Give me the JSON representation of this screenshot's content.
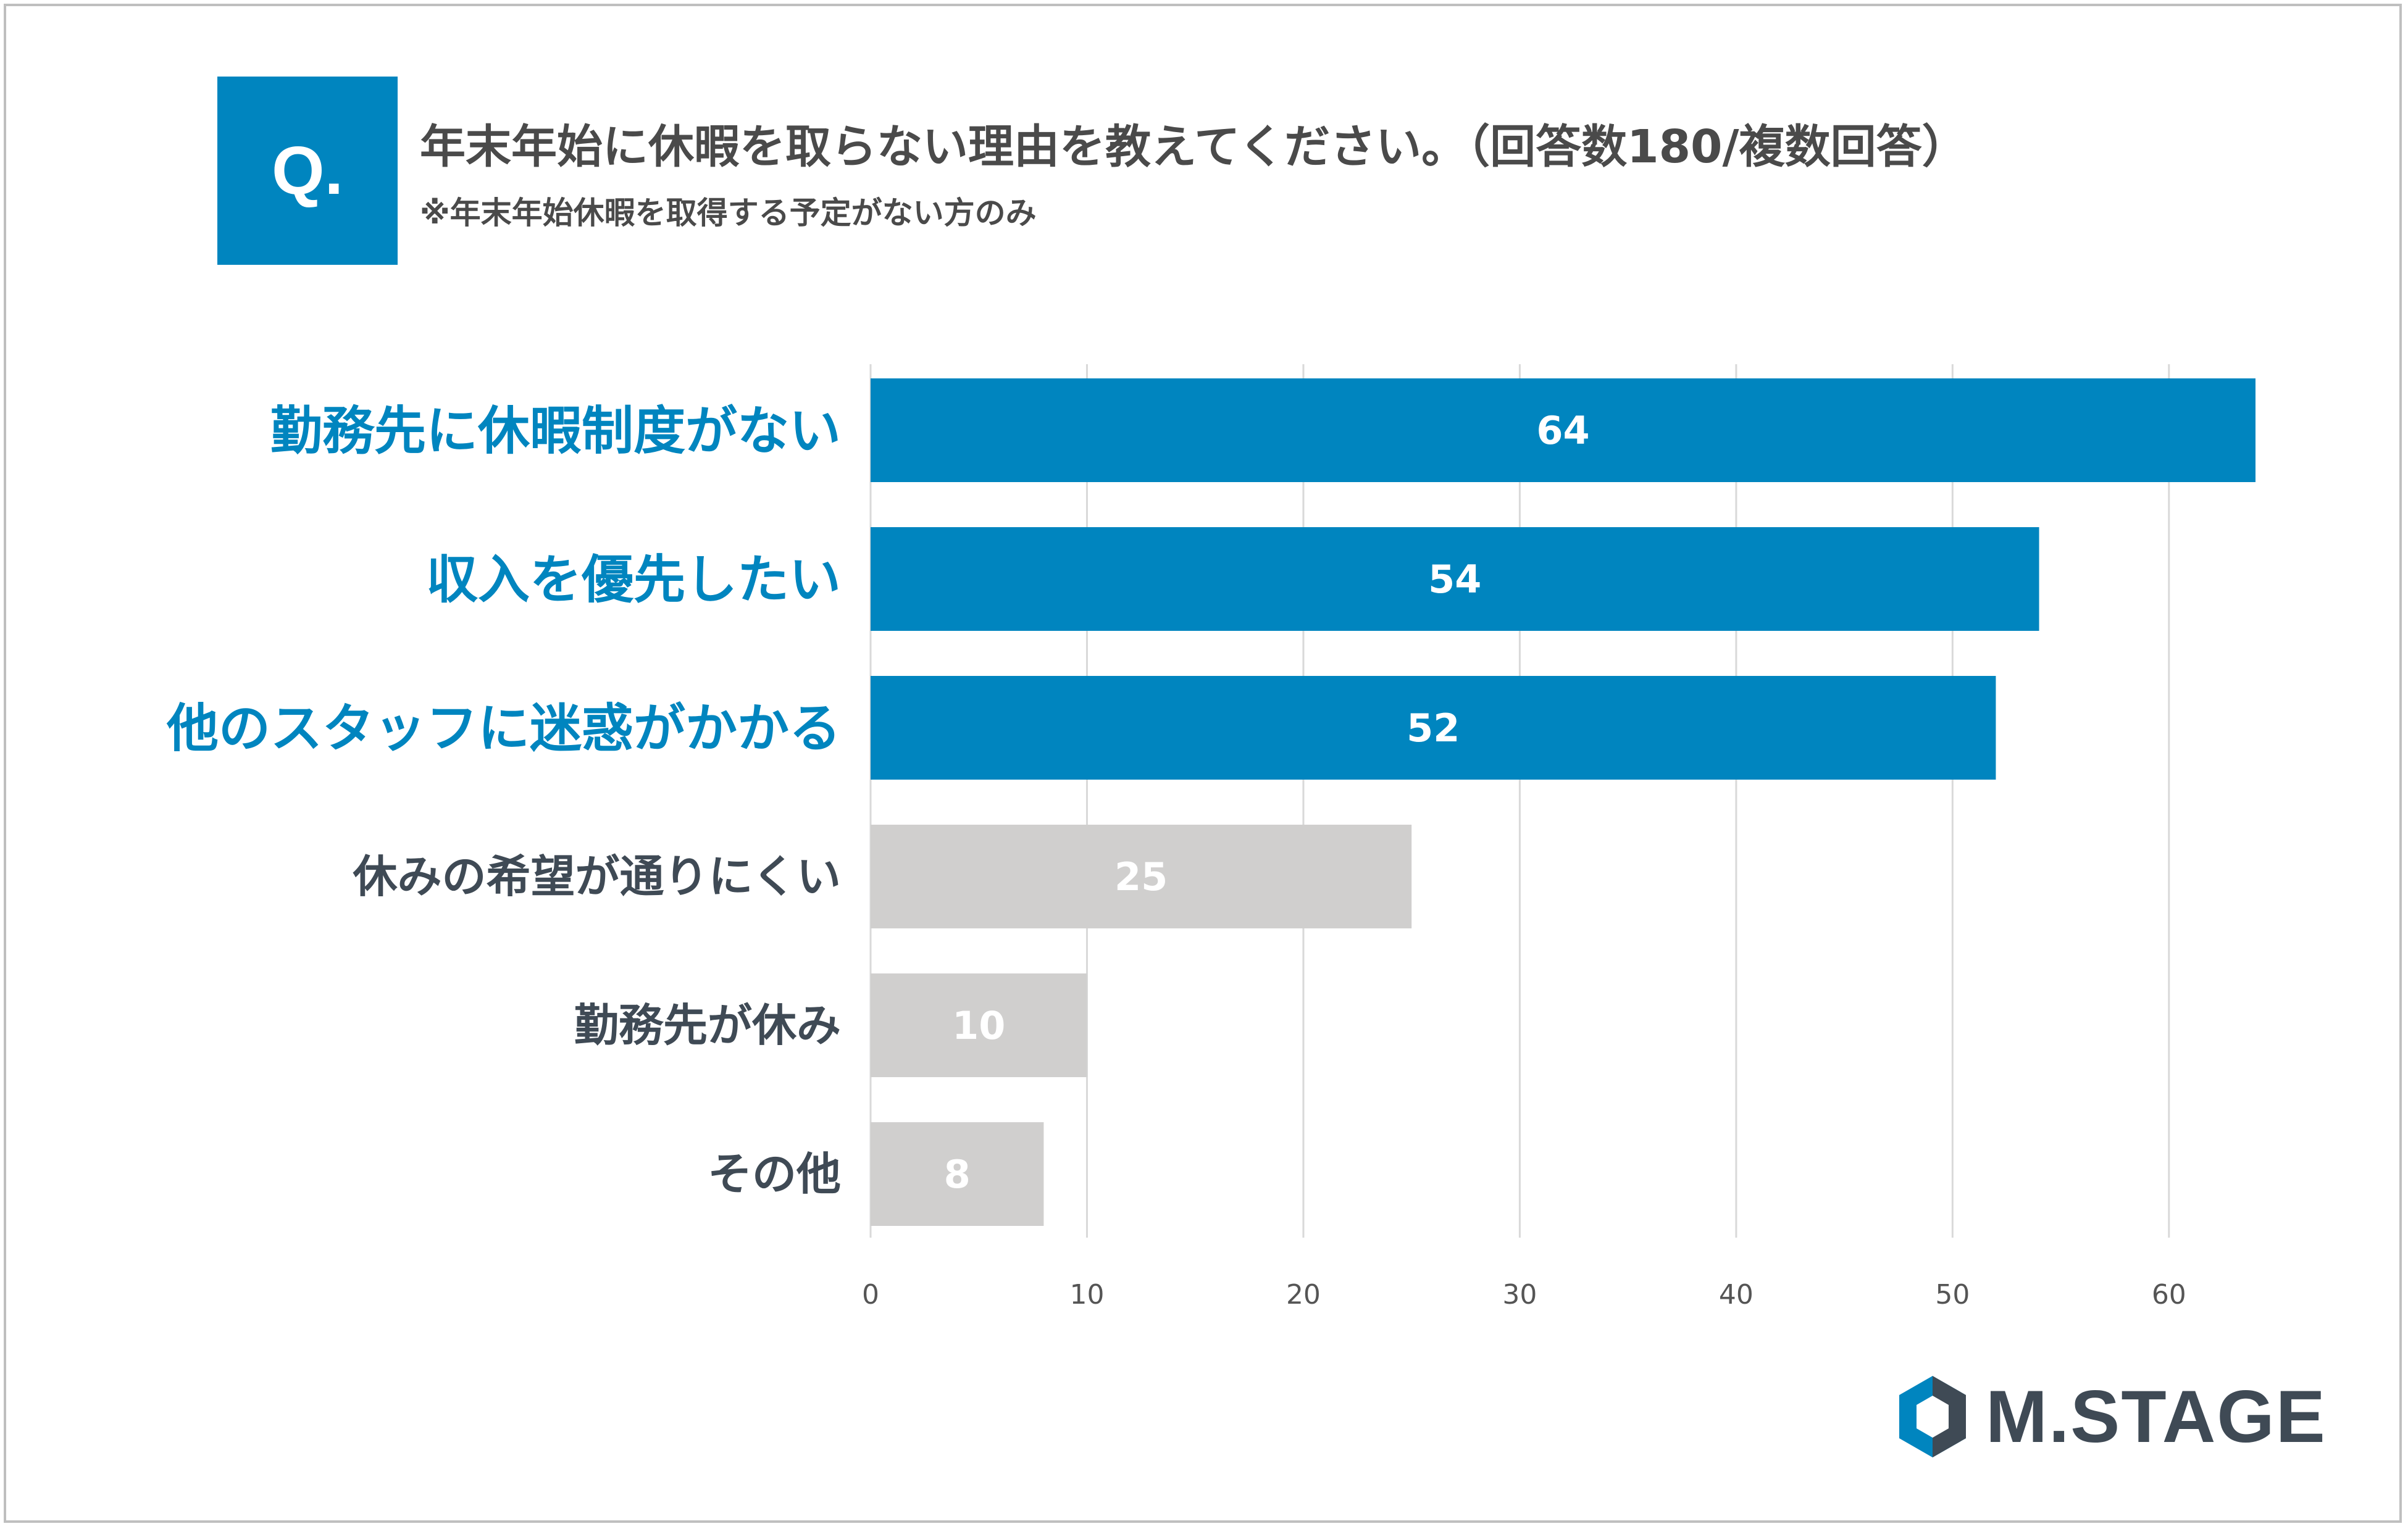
{
  "question": {
    "badge": "Q.",
    "title": "年末年始に休暇を取らない理由を教えてください。（回答数180/複数回答）",
    "note": "※年末年始休暇を取得する予定がない方のみ"
  },
  "logo": {
    "text": "M.STAGE",
    "icon": "m-stage-logo-icon"
  },
  "colors": {
    "highlight": "#0085bf",
    "muted": "#d0cfce",
    "highlight_label": "#0085bf",
    "muted_label": "#3f4a55"
  },
  "chart_data": {
    "type": "bar",
    "orientation": "horizontal",
    "title": "年末年始に休暇を取らない理由を教えてください。（回答数180/複数回答）",
    "categories": [
      "勤務先に休暇制度がない",
      "収入を優先したい",
      "他のスタッフに迷惑がかかる",
      "休みの希望が通りにくい",
      "勤務先が休み",
      "その他"
    ],
    "values": [
      64,
      54,
      52,
      25,
      10,
      8
    ],
    "highlighted": [
      true,
      true,
      true,
      false,
      false,
      false
    ],
    "xlim": [
      0,
      64
    ],
    "xticks": [
      0,
      10,
      20,
      30,
      40,
      50,
      60
    ],
    "grid": true,
    "xlabel": "",
    "ylabel": ""
  }
}
